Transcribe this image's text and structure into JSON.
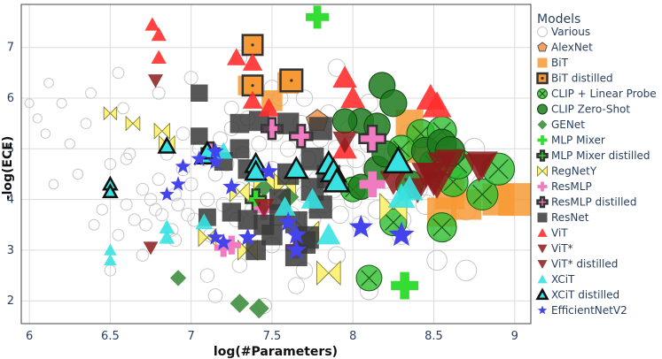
{
  "chart_data": {
    "type": "scatter",
    "xlabel": "log(#Parameters)",
    "ylabel": "-log(ECE)",
    "xlim": [
      5.95,
      9.1
    ],
    "ylim": [
      1.55,
      7.85
    ],
    "xticks": [
      "6",
      "6.5",
      "7",
      "7.5",
      "8",
      "8.5",
      "9"
    ],
    "yticks": [
      "2",
      "3",
      "4",
      "5",
      "6",
      "7"
    ],
    "grid": true,
    "legend_title": "Models",
    "legend_position": "right",
    "series": [
      {
        "name": "Various",
        "marker": "circle-open",
        "color": "#c8c8c8",
        "points": [
          [
            6.0,
            5.9
          ],
          [
            6.05,
            5.6
          ],
          [
            6.1,
            5.3
          ],
          [
            6.12,
            6.3
          ],
          [
            6.15,
            4.3
          ],
          [
            6.2,
            5.9
          ],
          [
            6.25,
            5.1
          ],
          [
            6.3,
            4.5
          ],
          [
            6.35,
            5.5
          ],
          [
            6.38,
            6.1
          ],
          [
            6.4,
            3.5
          ],
          [
            6.45,
            3.8
          ],
          [
            6.5,
            4.7
          ],
          [
            6.55,
            3.3
          ],
          [
            6.58,
            5.8
          ],
          [
            6.6,
            3.9
          ],
          [
            6.62,
            4.9
          ],
          [
            6.65,
            3.6
          ],
          [
            6.7,
            4.2
          ],
          [
            6.72,
            3.5
          ],
          [
            6.75,
            4.0
          ],
          [
            6.78,
            3.8
          ],
          [
            6.8,
            4.4
          ],
          [
            6.82,
            3.7
          ],
          [
            6.85,
            4.9
          ],
          [
            6.88,
            3.4
          ],
          [
            6.9,
            4.1
          ],
          [
            6.92,
            3.9
          ],
          [
            6.95,
            4.6
          ],
          [
            6.98,
            3.7
          ],
          [
            7.0,
            4.3
          ],
          [
            7.02,
            3.6
          ],
          [
            7.05,
            5.0
          ],
          [
            7.08,
            4.8
          ],
          [
            7.1,
            4.0
          ],
          [
            7.12,
            3.3
          ],
          [
            7.15,
            4.5
          ],
          [
            7.18,
            5.2
          ],
          [
            7.2,
            3.9
          ],
          [
            7.22,
            4.7
          ],
          [
            7.25,
            5.4
          ],
          [
            7.28,
            3.6
          ],
          [
            7.3,
            4.2
          ],
          [
            7.32,
            4.9
          ],
          [
            7.35,
            5.6
          ],
          [
            7.38,
            3.8
          ],
          [
            7.4,
            4.4
          ],
          [
            7.42,
            5.1
          ],
          [
            7.45,
            3.5
          ],
          [
            7.48,
            4.0
          ],
          [
            7.5,
            4.6
          ],
          [
            7.52,
            5.3
          ],
          [
            7.55,
            3.9
          ],
          [
            7.58,
            4.3
          ],
          [
            7.6,
            5.0
          ],
          [
            7.62,
            3.7
          ],
          [
            7.65,
            4.5
          ],
          [
            7.68,
            5.5
          ],
          [
            7.7,
            4.1
          ],
          [
            7.72,
            4.8
          ],
          [
            7.75,
            3.6
          ],
          [
            7.78,
            4.4
          ],
          [
            7.8,
            5.2
          ],
          [
            7.82,
            3.9
          ],
          [
            7.85,
            4.7
          ],
          [
            7.88,
            4.2
          ],
          [
            7.9,
            5.0
          ],
          [
            7.92,
            3.7
          ],
          [
            7.95,
            4.5
          ],
          [
            7.98,
            5.4
          ],
          [
            8.0,
            4.0
          ],
          [
            8.02,
            4.8
          ],
          [
            8.05,
            3.5
          ],
          [
            8.08,
            4.3
          ],
          [
            8.1,
            5.1
          ],
          [
            8.12,
            4.6
          ],
          [
            8.15,
            3.8
          ],
          [
            8.2,
            4.4
          ],
          [
            8.25,
            4.9
          ],
          [
            8.3,
            3.6
          ],
          [
            8.35,
            5.3
          ],
          [
            8.4,
            4.2
          ],
          [
            8.45,
            3.9
          ],
          [
            8.5,
            4.7
          ],
          [
            8.55,
            3.4
          ],
          [
            8.6,
            4.1
          ],
          [
            8.65,
            4.5
          ],
          [
            8.7,
            3.8
          ],
          [
            8.75,
            5.0
          ],
          [
            8.8,
            4.3
          ],
          [
            6.5,
            2.6
          ],
          [
            6.7,
            2.9
          ],
          [
            6.9,
            3.2
          ],
          [
            7.1,
            2.5
          ],
          [
            7.3,
            2.7
          ],
          [
            7.5,
            3.1
          ],
          [
            7.7,
            2.6
          ],
          [
            7.9,
            2.9
          ],
          [
            8.1,
            2.2
          ],
          [
            8.3,
            3.3
          ],
          [
            6.55,
            6.5
          ],
          [
            6.8,
            6.1
          ],
          [
            7.0,
            6.4
          ],
          [
            7.3,
            6.8
          ],
          [
            7.5,
            6.2
          ],
          [
            7.7,
            6.0
          ],
          [
            7.9,
            6.6
          ],
          [
            8.1,
            5.9
          ],
          [
            7.45,
            1.9
          ],
          [
            8.52,
            2.8
          ],
          [
            6.6,
            4.8
          ],
          [
            6.95,
            5.3
          ],
          [
            7.25,
            5.8
          ],
          [
            7.55,
            6.0
          ],
          [
            7.85,
            5.7
          ],
          [
            8.15,
            5.5
          ],
          [
            8.45,
            5.6
          ],
          [
            8.7,
            2.6
          ],
          [
            7.65,
            2.3
          ],
          [
            7.15,
            2.1
          ]
        ]
      },
      {
        "name": "AlexNet",
        "marker": "pentagon",
        "color": "#f4a261",
        "points": [
          [
            7.78,
            5.55
          ]
        ]
      },
      {
        "name": "BiT",
        "marker": "square",
        "color": "#f79a35",
        "points": [
          [
            8.6,
            4.1
          ],
          [
            8.7,
            3.9
          ],
          [
            8.9,
            4.0
          ],
          [
            9.0,
            4.0
          ],
          [
            8.55,
            3.75
          ],
          [
            8.35,
            5.5
          ],
          [
            8.42,
            5.0
          ],
          [
            7.35,
            6.25
          ],
          [
            7.6,
            6.3
          ],
          [
            7.5,
            5.95
          ]
        ]
      },
      {
        "name": "BiT distilled",
        "marker": "square-dot",
        "color": "#f79a35",
        "points": [
          [
            7.38,
            7.05
          ],
          [
            7.38,
            6.25
          ],
          [
            7.62,
            6.35
          ]
        ]
      },
      {
        "name": "CLIP + Linear Probe",
        "marker": "circle-x",
        "color": "#2ebd2e",
        "points": [
          [
            8.42,
            5.3
          ],
          [
            8.62,
            4.35
          ],
          [
            8.55,
            5.35
          ],
          [
            8.65,
            4.7
          ],
          [
            8.55,
            3.45
          ],
          [
            8.25,
            3.55
          ],
          [
            8.1,
            2.45
          ],
          [
            8.8,
            4.1
          ],
          [
            8.5,
            4.7
          ],
          [
            8.3,
            5.0
          ],
          [
            8.0,
            4.2
          ],
          [
            8.9,
            4.6
          ]
        ]
      },
      {
        "name": "CLIP Zero-Shot",
        "marker": "circle-dot",
        "color": "#1e7a1e",
        "points": [
          [
            8.18,
            6.25
          ],
          [
            8.25,
            5.9
          ],
          [
            8.05,
            5.55
          ],
          [
            8.15,
            5.45
          ],
          [
            7.95,
            5.55
          ],
          [
            8.45,
            4.95
          ],
          [
            8.55,
            5.1
          ],
          [
            8.6,
            4.95
          ],
          [
            8.15,
            4.6
          ],
          [
            8.05,
            4.25
          ],
          [
            8.2,
            4.9
          ],
          [
            8.35,
            4.3
          ]
        ]
      },
      {
        "name": "GENet",
        "marker": "diamond",
        "color": "#3f8f3f",
        "points": [
          [
            6.92,
            2.45
          ],
          [
            7.3,
            1.95
          ],
          [
            7.42,
            1.85
          ],
          [
            7.45,
            4.25
          ],
          [
            7.6,
            4.05
          ]
        ]
      },
      {
        "name": "MLP Mixer",
        "marker": "cross",
        "color": "#33dd33",
        "points": [
          [
            7.78,
            7.6
          ],
          [
            8.32,
            2.3
          ]
        ]
      },
      {
        "name": "MLP Mixer distilled",
        "marker": "cross-outline",
        "color": "#33dd33",
        "points": [
          [
            7.4,
            4.0
          ]
        ]
      },
      {
        "name": "RegNetY",
        "marker": "bowtie",
        "color": "#fff27a",
        "points": [
          [
            6.5,
            5.7
          ],
          [
            6.64,
            5.5
          ],
          [
            6.82,
            5.35
          ],
          [
            6.85,
            5.1
          ],
          [
            7.1,
            3.25
          ],
          [
            7.35,
            3.0
          ],
          [
            7.45,
            4.4
          ],
          [
            7.58,
            4.3
          ],
          [
            7.72,
            3.35
          ],
          [
            7.85,
            2.55
          ],
          [
            8.25,
            3.85
          ],
          [
            7.3,
            4.15
          ]
        ]
      },
      {
        "name": "ResMLP",
        "marker": "cross",
        "color": "#f07bc0",
        "points": [
          [
            8.12,
            4.3
          ],
          [
            7.45,
            3.8
          ],
          [
            7.2,
            3.05
          ],
          [
            7.25,
            3.1
          ],
          [
            7.65,
            3.05
          ]
        ]
      },
      {
        "name": "ResMLP distilled",
        "marker": "cross-outline",
        "color": "#f07bc0",
        "points": [
          [
            7.12,
            4.95
          ],
          [
            7.5,
            5.4
          ],
          [
            7.68,
            5.25
          ],
          [
            8.12,
            5.2
          ]
        ]
      },
      {
        "name": "ResNet",
        "marker": "square",
        "color": "#3a3a3a",
        "points": [
          [
            7.05,
            6.1
          ],
          [
            7.05,
            5.25
          ],
          [
            7.2,
            4.75
          ],
          [
            7.3,
            5.5
          ],
          [
            7.3,
            5.0
          ],
          [
            7.35,
            4.6
          ],
          [
            7.35,
            3.6
          ],
          [
            7.4,
            3.0
          ],
          [
            7.45,
            3.5
          ],
          [
            7.55,
            3.7
          ],
          [
            7.6,
            5.5
          ],
          [
            7.6,
            4.5
          ],
          [
            7.65,
            3.55
          ],
          [
            7.7,
            3.15
          ],
          [
            7.75,
            4.8
          ],
          [
            7.75,
            4.2
          ],
          [
            7.8,
            3.85
          ],
          [
            7.85,
            4.45
          ],
          [
            7.65,
            2.9
          ],
          [
            7.1,
            3.65
          ],
          [
            7.25,
            3.75
          ],
          [
            7.5,
            3.3
          ],
          [
            7.8,
            5.4
          ],
          [
            7.55,
            4.0
          ],
          [
            7.72,
            3.25
          ],
          [
            7.42,
            5.55
          ]
        ]
      },
      {
        "name": "ViT",
        "marker": "triangle-up",
        "color": "#ff2d2d",
        "points": [
          [
            6.76,
            7.45
          ],
          [
            6.8,
            7.25
          ],
          [
            6.8,
            6.8
          ],
          [
            7.28,
            6.8
          ],
          [
            7.38,
            6.7
          ],
          [
            7.38,
            5.95
          ],
          [
            7.48,
            5.8
          ],
          [
            7.95,
            6.4
          ],
          [
            8.0,
            6.0
          ],
          [
            8.48,
            6.0
          ],
          [
            8.52,
            5.85
          ],
          [
            7.95,
            5.0
          ]
        ]
      },
      {
        "name": "ViT*",
        "marker": "triangle-down",
        "color": "#8b1a1a",
        "points": [
          [
            6.78,
            6.35
          ],
          [
            6.75,
            3.05
          ],
          [
            7.45,
            3.85
          ],
          [
            7.95,
            5.15
          ],
          [
            8.25,
            4.35
          ],
          [
            8.4,
            4.2
          ],
          [
            8.45,
            4.5
          ],
          [
            8.55,
            4.7
          ],
          [
            8.8,
            4.7
          ],
          [
            8.5,
            4.35
          ]
        ]
      },
      {
        "name": "ViT* distilled",
        "marker": "triangle-down",
        "color": "#8b1a1a",
        "points": [
          [
            8.48,
            4.5
          ],
          [
            8.52,
            4.3
          ],
          [
            8.6,
            4.75
          ],
          [
            8.78,
            4.65
          ]
        ]
      },
      {
        "name": "XCiT",
        "marker": "triangle-up",
        "color": "#38e2e2",
        "points": [
          [
            6.5,
            3.0
          ],
          [
            6.5,
            2.8
          ],
          [
            6.85,
            3.45
          ],
          [
            6.85,
            3.25
          ],
          [
            7.08,
            3.55
          ],
          [
            7.4,
            4.5
          ],
          [
            7.58,
            3.85
          ],
          [
            7.75,
            4.0
          ],
          [
            7.85,
            3.3
          ],
          [
            8.3,
            4.05
          ],
          [
            8.35,
            4.2
          ],
          [
            7.2,
            4.95
          ]
        ]
      },
      {
        "name": "XCiT distilled",
        "marker": "triangle-up-outline",
        "color": "#38e2e2",
        "points": [
          [
            6.5,
            4.3
          ],
          [
            6.5,
            4.15
          ],
          [
            6.85,
            5.05
          ],
          [
            7.08,
            4.85
          ],
          [
            7.1,
            4.95
          ],
          [
            7.4,
            4.7
          ],
          [
            7.4,
            4.55
          ],
          [
            7.65,
            4.6
          ],
          [
            7.85,
            4.7
          ],
          [
            7.88,
            4.55
          ],
          [
            7.9,
            4.35
          ],
          [
            8.28,
            4.75
          ]
        ]
      },
      {
        "name": "EfficientNetV2",
        "marker": "star",
        "color": "#4444ee",
        "points": [
          [
            6.85,
            4.1
          ],
          [
            6.92,
            4.3
          ],
          [
            6.95,
            4.65
          ],
          [
            7.05,
            4.8
          ],
          [
            7.15,
            4.95
          ],
          [
            7.15,
            4.75
          ],
          [
            7.25,
            4.25
          ],
          [
            7.15,
            3.25
          ],
          [
            7.2,
            3.15
          ],
          [
            7.35,
            3.25
          ],
          [
            7.48,
            4.55
          ],
          [
            7.6,
            3.55
          ],
          [
            7.65,
            3.3
          ],
          [
            7.65,
            3.0
          ],
          [
            8.05,
            3.45
          ],
          [
            8.3,
            3.3
          ]
        ]
      }
    ]
  }
}
